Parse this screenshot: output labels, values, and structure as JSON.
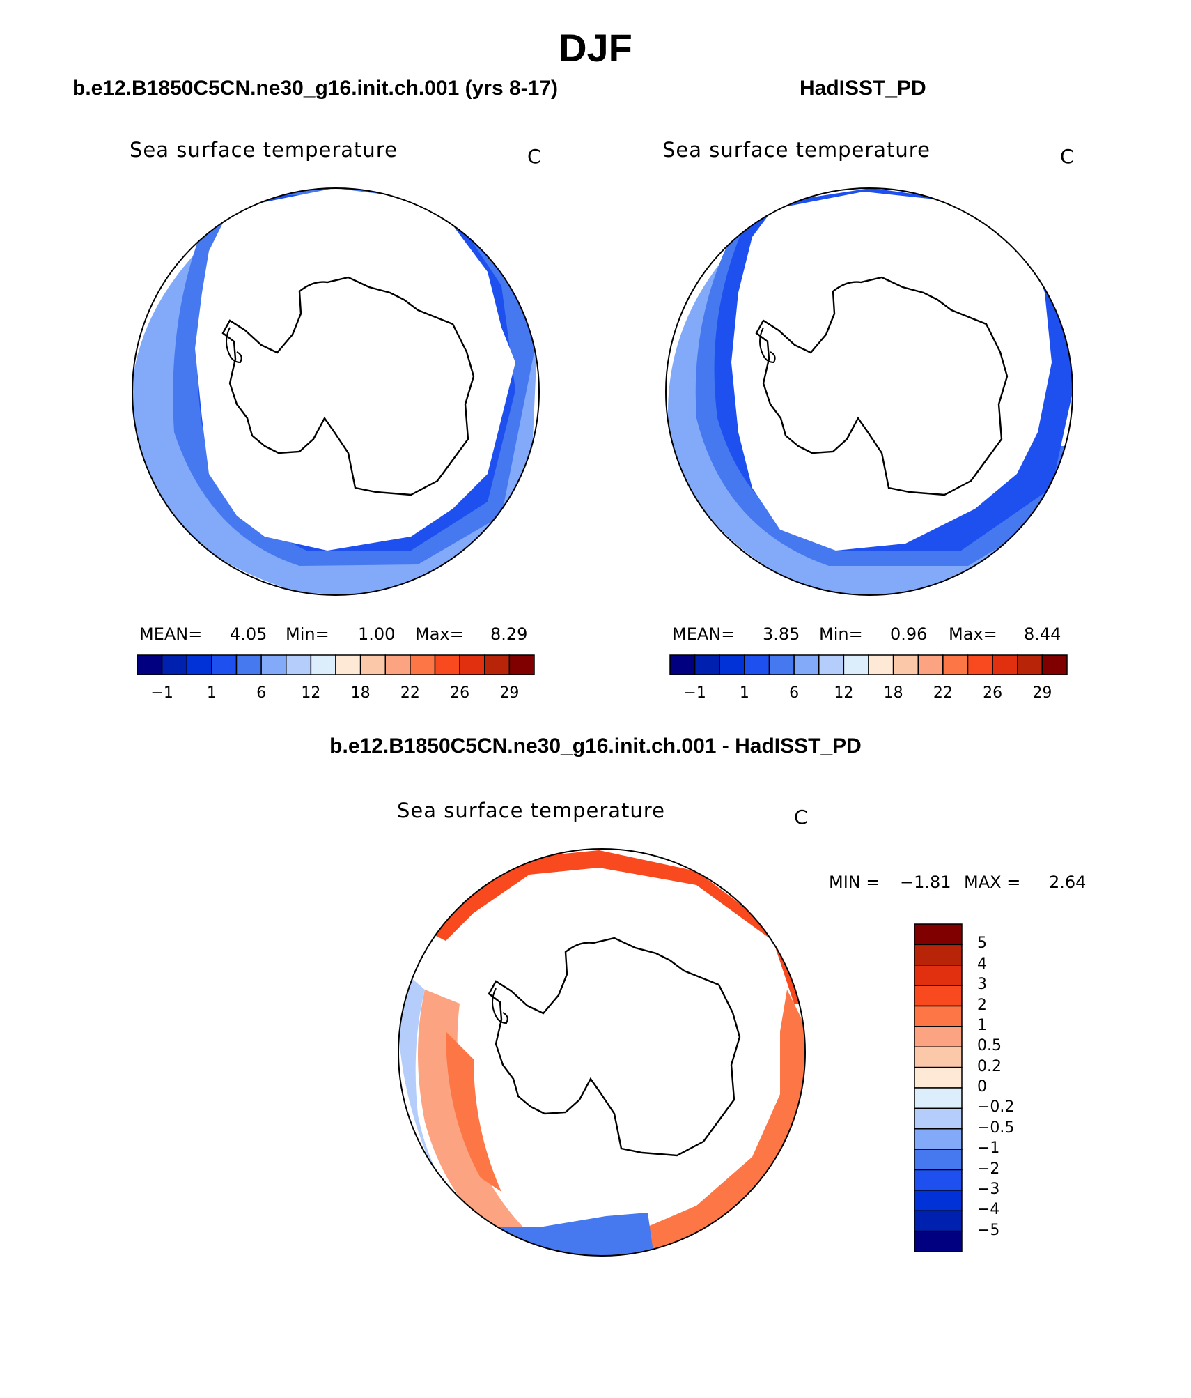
{
  "page": {
    "title": "DJF",
    "variable_label": "Sea surface temperature",
    "units": "C"
  },
  "panels": [
    {
      "id": "model",
      "title": "b.e12.B1850C5CN.ne30_g16.init.ch.001 (yrs 8-17)",
      "stats": {
        "mean_label": "MEAN=",
        "mean": "4.05",
        "min_label": "Min=",
        "min": "1.00",
        "max_label": "Max=",
        "max": "8.29"
      }
    },
    {
      "id": "obs",
      "title": "HadISST_PD",
      "stats": {
        "mean_label": "MEAN=",
        "mean": "3.85",
        "min_label": "Min=",
        "min": "0.96",
        "max_label": "Max=",
        "max": "8.44"
      }
    }
  ],
  "difference": {
    "title": "b.e12.B1850C5CN.ne30_g16.init.ch.001 - HadISST_PD",
    "min_label": "MIN =",
    "min": "−1.81",
    "max_label": "MAX =",
    "max": "2.64"
  },
  "colorbar_abs": {
    "colors": [
      "#000080",
      "#0020b0",
      "#0032d8",
      "#1e50f0",
      "#4678f0",
      "#82aaf8",
      "#b4cdfa",
      "#dceefc",
      "#fee8d6",
      "#fcc8aa",
      "#fca482",
      "#fc7646",
      "#f84a1e",
      "#e03010",
      "#b82408",
      "#800000"
    ],
    "tick_labels": [
      "−1",
      "1",
      "6",
      "12",
      "18",
      "22",
      "26",
      "29"
    ]
  },
  "colorbar_diff": {
    "colors_top_to_bottom": [
      "#800000",
      "#b82408",
      "#e03010",
      "#f84a1e",
      "#fc7646",
      "#fca482",
      "#fcc8aa",
      "#fee8d6",
      "#dceefc",
      "#b4cdfa",
      "#82aaf8",
      "#4678f0",
      "#1e50f0",
      "#0032d8",
      "#0020b0",
      "#000080"
    ],
    "tick_labels": [
      "5",
      "4",
      "3",
      "2",
      "1",
      "0.5",
      "0.2",
      "0",
      "−0.2",
      "−0.5",
      "−1",
      "−2",
      "−3",
      "−4",
      "−5"
    ]
  }
}
